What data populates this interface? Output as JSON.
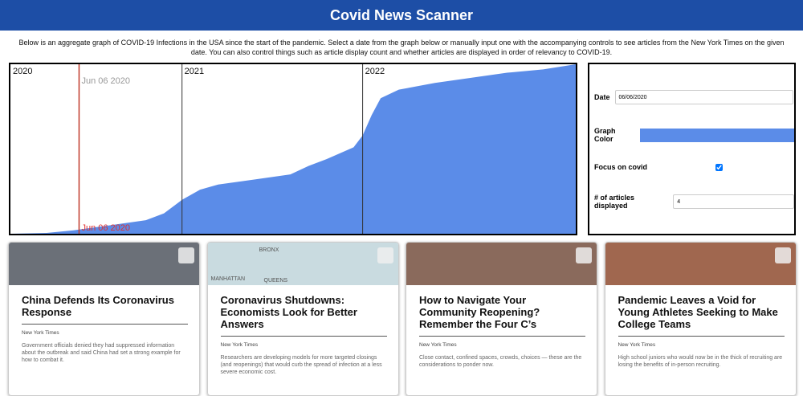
{
  "header": {
    "title": "Covid News Scanner"
  },
  "intro": "Below is an aggregate graph of COVID-19 Infections in the USA since the start of the pandemic. Select a date from the graph below or manually input one with the accompanying controls to see articles from the New York Times on the given date. You can also control things such as article display count and whether articles are displayed in order of relevancy to COVID-19.",
  "chart_data": {
    "type": "area",
    "x": [
      2020.05,
      2020.25,
      2020.4,
      2020.6,
      2020.8,
      2020.9,
      2021.0,
      2021.1,
      2021.2,
      2021.4,
      2021.6,
      2021.7,
      2021.8,
      2021.95,
      2022.0,
      2022.05,
      2022.1,
      2022.2,
      2022.4,
      2022.6,
      2022.8,
      2023.0,
      2023.18
    ],
    "series": [
      {
        "color": "#5b8ce8",
        "values": [
          0,
          0.5,
          2,
          5,
          8,
          12,
          20,
          26,
          29,
          32,
          35,
          40,
          44,
          51,
          58,
          70,
          80,
          85,
          89,
          92,
          95,
          97,
          100
        ]
      }
    ],
    "xlim": [
      2020.05,
      2023.18
    ],
    "ylim": [
      0,
      100
    ],
    "xticks": [
      2020,
      2021,
      2022
    ],
    "selected": {
      "x": 2020.43,
      "label": "Jun 06 2020"
    }
  },
  "controls": {
    "date_label": "Date",
    "date_value": "06/06/2020",
    "color_label": "Graph Color",
    "color_value": "#5b8ce8",
    "focus_label": "Focus on covid",
    "focus_checked": true,
    "count_label": "# of articles displayed",
    "count_value": 4
  },
  "articles": [
    {
      "title": "China Defends Its Coronavirus Response",
      "source": "New York Times",
      "snippet": "Government officials denied they had suppressed information about the outbreak and said China had set a strong example for how to combat it.",
      "image": "#6b7078"
    },
    {
      "title": "Coronavirus Shutdowns: Economists Look for Better Answers",
      "source": "New York Times",
      "snippet": "Researchers are developing models for more targeted closings (and reopenings) that would curb the spread of infection at a less severe economic cost.",
      "image": "#c9dbe0",
      "map_labels": [
        "BRONX",
        "MANHATTAN",
        "QUEENS"
      ]
    },
    {
      "title": "How to Navigate Your Community Reopening? Remember the Four C’s",
      "source": "New York Times",
      "snippet": "Close contact, confined spaces, crowds, choices — these are the considerations to ponder now.",
      "image": "#8a6a5c"
    },
    {
      "title": "Pandemic Leaves a Void for Young Athletes Seeking to Make College Teams",
      "source": "New York Times",
      "snippet": "High school juniors who would now be in the thick of recruiting are losing the benefits of in-person recruiting.",
      "image": "#a0674f"
    }
  ]
}
